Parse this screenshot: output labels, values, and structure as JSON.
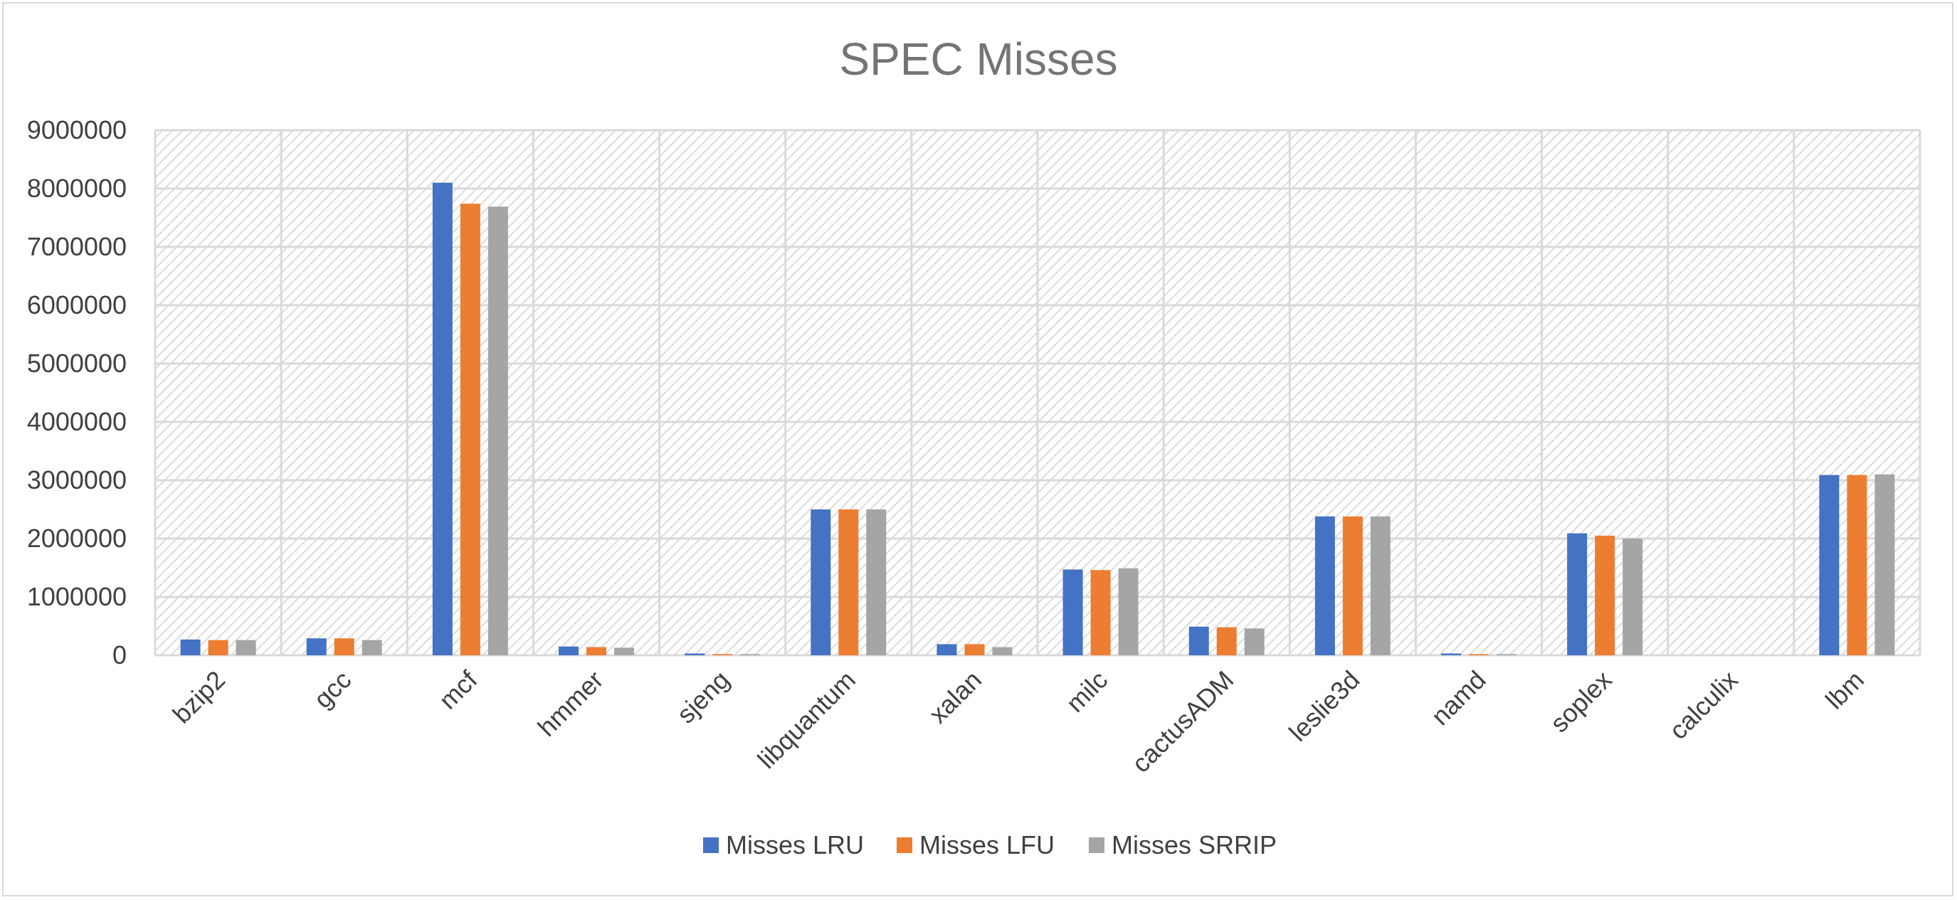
{
  "chart_data": {
    "type": "bar",
    "title": "SPEC Misses",
    "xlabel": "",
    "ylabel": "",
    "ylim": [
      0,
      9000000
    ],
    "yticks": [
      0,
      1000000,
      2000000,
      3000000,
      4000000,
      5000000,
      6000000,
      7000000,
      8000000,
      9000000
    ],
    "ytick_labels": [
      "0",
      "1000000",
      "2000000",
      "3000000",
      "4000000",
      "5000000",
      "6000000",
      "7000000",
      "8000000",
      "9000000"
    ],
    "grid": true,
    "legend_position": "bottom",
    "categories": [
      "bzip2",
      "gcc",
      "mcf",
      "hmmer",
      "sjeng",
      "libquantum",
      "xalan",
      "milc",
      "cactusADM",
      "leslie3d",
      "namd",
      "soplex",
      "calculix",
      "lbm"
    ],
    "series": [
      {
        "name": "Misses LRU",
        "color": "#4472C4",
        "values": [
          270000,
          290000,
          8100000,
          150000,
          30000,
          2500000,
          190000,
          1470000,
          490000,
          2380000,
          30000,
          2090000,
          0,
          3090000
        ]
      },
      {
        "name": "Misses LFU",
        "color": "#ED7D31",
        "values": [
          260000,
          290000,
          7740000,
          140000,
          20000,
          2500000,
          190000,
          1460000,
          480000,
          2380000,
          20000,
          2050000,
          0,
          3090000
        ]
      },
      {
        "name": "Misses SRRIP",
        "color": "#A5A5A5",
        "values": [
          260000,
          260000,
          7690000,
          130000,
          20000,
          2500000,
          140000,
          1490000,
          460000,
          2380000,
          20000,
          2000000,
          0,
          3100000
        ]
      }
    ]
  }
}
